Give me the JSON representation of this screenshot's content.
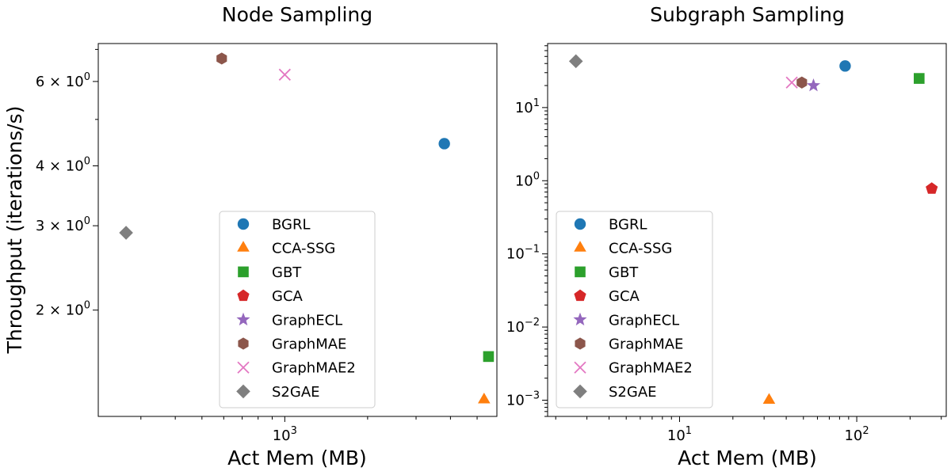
{
  "y_label": "Throughput (iterations/s)",
  "panels": [
    {
      "title": "Node Sampling",
      "xlabel": "Act Mem (MB)",
      "xscale": "log",
      "yscale": "log",
      "xlim": [
        210,
        5900
      ],
      "ylim": [
        1.2,
        7.2
      ],
      "x_ticks_major": [
        {
          "v": 1000,
          "label": "10^3"
        }
      ],
      "y_ticks_major": [
        {
          "v": 2,
          "label": "2 × 10^0"
        },
        {
          "v": 3,
          "label": "3 × 10^0"
        },
        {
          "v": 4,
          "label": "4 × 10^0"
        },
        {
          "v": 6,
          "label": "6 × 10^0"
        }
      ],
      "legend": "bottom-center",
      "points": [
        {
          "method": "BGRL",
          "x": 3800,
          "y": 4.45
        },
        {
          "method": "CCA-SSG",
          "x": 5300,
          "y": 1.3
        },
        {
          "method": "GBT",
          "x": 5500,
          "y": 1.6
        },
        {
          "method": "GraphMAE",
          "x": 590,
          "y": 6.7
        },
        {
          "method": "GraphMAE2",
          "x": 1000,
          "y": 6.2
        },
        {
          "method": "S2GAE",
          "x": 265,
          "y": 2.9
        }
      ]
    },
    {
      "title": "Subgraph Sampling",
      "xlabel": "Act Mem (MB)",
      "xscale": "log",
      "yscale": "log",
      "xlim": [
        1.8,
        320
      ],
      "ylim": [
        0.0006,
        75
      ],
      "x_ticks_major": [
        {
          "v": 10,
          "label": "10^1"
        },
        {
          "v": 100,
          "label": "10^2"
        }
      ],
      "y_ticks_major": [
        {
          "v": 0.001,
          "label": "10^-3"
        },
        {
          "v": 0.01,
          "label": "10^-2"
        },
        {
          "v": 0.1,
          "label": "10^-1"
        },
        {
          "v": 1,
          "label": "10^0"
        },
        {
          "v": 10,
          "label": "10^1"
        }
      ],
      "legend": "lower-left",
      "points": [
        {
          "method": "BGRL",
          "x": 86,
          "y": 37
        },
        {
          "method": "CCA-SSG",
          "x": 32,
          "y": 0.001
        },
        {
          "method": "GBT",
          "x": 225,
          "y": 25
        },
        {
          "method": "GCA",
          "x": 265,
          "y": 0.78
        },
        {
          "method": "GraphECL",
          "x": 57,
          "y": 20
        },
        {
          "method": "GraphMAE",
          "x": 49,
          "y": 22
        },
        {
          "method": "GraphMAE2",
          "x": 43,
          "y": 22
        },
        {
          "method": "S2GAE",
          "x": 2.6,
          "y": 43
        }
      ]
    }
  ],
  "legend_entries": [
    {
      "label": "BGRL",
      "marker": "circle",
      "color": "#1f77b4"
    },
    {
      "label": "CCA-SSG",
      "marker": "triangle",
      "color": "#ff7f0e"
    },
    {
      "label": "GBT",
      "marker": "square",
      "color": "#2ca02c"
    },
    {
      "label": "GCA",
      "marker": "pentagon",
      "color": "#d62728"
    },
    {
      "label": "GraphECL",
      "marker": "star",
      "color": "#9467bd"
    },
    {
      "label": "GraphMAE",
      "marker": "hexagon",
      "color": "#8c564b"
    },
    {
      "label": "GraphMAE2",
      "marker": "x",
      "color": "#e377c2"
    },
    {
      "label": "S2GAE",
      "marker": "diamond",
      "color": "#7f7f7f"
    }
  ],
  "chart_data": [
    {
      "type": "scatter",
      "title": "Node Sampling",
      "xlabel": "Act Mem (MB)",
      "ylabel": "Throughput (iterations/s)",
      "xscale": "log",
      "yscale": "log",
      "xlim": [
        210,
        5900
      ],
      "ylim": [
        1.2,
        7.2
      ],
      "grid": false,
      "legend": "bottom-center",
      "series": [
        {
          "name": "BGRL",
          "x": [
            3800
          ],
          "y": [
            4.45
          ]
        },
        {
          "name": "CCA-SSG",
          "x": [
            5300
          ],
          "y": [
            1.3
          ]
        },
        {
          "name": "GBT",
          "x": [
            5500
          ],
          "y": [
            1.6
          ]
        },
        {
          "name": "GraphMAE",
          "x": [
            590
          ],
          "y": [
            6.7
          ]
        },
        {
          "name": "GraphMAE2",
          "x": [
            1000
          ],
          "y": [
            6.2
          ]
        },
        {
          "name": "S2GAE",
          "x": [
            265
          ],
          "y": [
            2.9
          ]
        }
      ]
    },
    {
      "type": "scatter",
      "title": "Subgraph Sampling",
      "xlabel": "Act Mem (MB)",
      "xscale": "log",
      "yscale": "log",
      "xlim": [
        1.8,
        320
      ],
      "ylim": [
        0.0006,
        75
      ],
      "grid": false,
      "legend": "lower-left",
      "series": [
        {
          "name": "BGRL",
          "x": [
            86
          ],
          "y": [
            37
          ]
        },
        {
          "name": "CCA-SSG",
          "x": [
            32
          ],
          "y": [
            0.001
          ]
        },
        {
          "name": "GBT",
          "x": [
            225
          ],
          "y": [
            25
          ]
        },
        {
          "name": "GCA",
          "x": [
            265
          ],
          "y": [
            0.78
          ]
        },
        {
          "name": "GraphECL",
          "x": [
            57
          ],
          "y": [
            20
          ]
        },
        {
          "name": "GraphMAE",
          "x": [
            49
          ],
          "y": [
            22
          ]
        },
        {
          "name": "GraphMAE2",
          "x": [
            43
          ],
          "y": [
            22
          ]
        },
        {
          "name": "S2GAE",
          "x": [
            2.6
          ],
          "y": [
            43
          ]
        }
      ]
    }
  ]
}
